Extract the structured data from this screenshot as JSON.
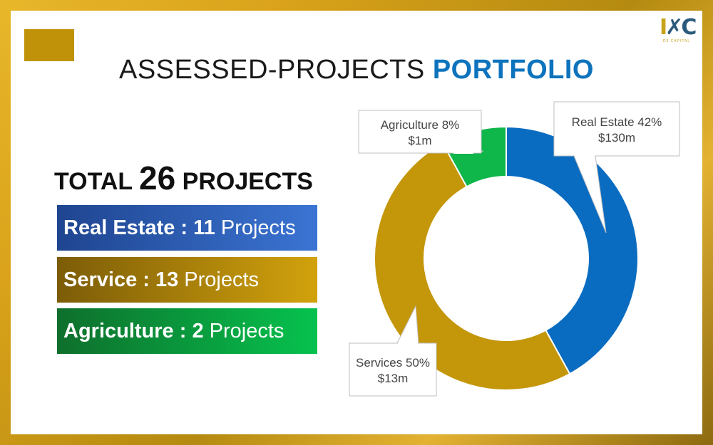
{
  "title": {
    "main": "ASSESSED-PROJECTS",
    "accent": "PORTFOLIO"
  },
  "logo": {
    "mark_left": "I",
    "mark_right": "C",
    "sub": "D3 CAPITAL"
  },
  "summary": {
    "prefix": "TOTAL",
    "count": "26",
    "suffix": "PROJECTS",
    "items": [
      {
        "label": "Real Estate : 11",
        "unit": "Projects"
      },
      {
        "label": "Service : 13",
        "unit": "Projects"
      },
      {
        "label": "Agriculture : 2",
        "unit": "Projects"
      }
    ]
  },
  "colors": {
    "real_estate": "#0a6cc0",
    "services": "#c4960a",
    "agriculture": "#0fb64a"
  },
  "chart_data": {
    "type": "pie",
    "style": "donut",
    "categories": [
      "Real Estate",
      "Services",
      "Agriculture"
    ],
    "values": [
      42,
      50,
      8
    ],
    "unit": "%",
    "amounts": [
      "$130m",
      "$13m",
      "$1m"
    ],
    "labels": [
      {
        "line1": "Real Estate 42%",
        "line2": "$130m"
      },
      {
        "line1": "Services 50%",
        "line2": "$13m"
      },
      {
        "line1": "Agriculture 8%",
        "line2": "$1m"
      }
    ],
    "start_angle_deg": 0,
    "direction": "clockwise",
    "legend": "none"
  }
}
